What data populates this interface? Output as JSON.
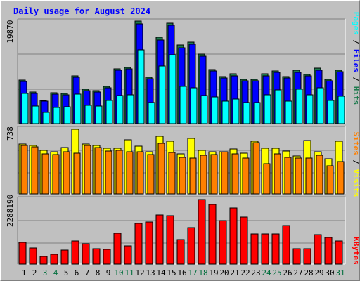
{
  "title": "Daily usage for August 2024",
  "colors": {
    "hits": "#1e7b4e",
    "files": "#0000ff",
    "pages": "#00ffff",
    "visits": "#ffff00",
    "sites": "#ff8000",
    "kbytes": "#ff0000",
    "title": "#0000ff",
    "weekend": "#006e3c",
    "weekday": "#000000"
  },
  "chart_data": [
    {
      "type": "bar",
      "categories": [
        "1",
        "2",
        "3",
        "4",
        "5",
        "6",
        "7",
        "8",
        "9",
        "10",
        "11",
        "12",
        "13",
        "14",
        "15",
        "16",
        "17",
        "18",
        "19",
        "20",
        "21",
        "22",
        "23",
        "24",
        "25",
        "26",
        "27",
        "28",
        "29",
        "30",
        "31"
      ],
      "weekend_days": [
        "3",
        "4",
        "10",
        "11",
        "17",
        "18",
        "24",
        "25",
        "31"
      ],
      "ymax_label": "19870",
      "ylim": [
        0,
        19870
      ],
      "axis_labels": {
        "pages": "Pages",
        "files": "Files",
        "hits": "Hits",
        "sep": " / "
      },
      "series": [
        {
          "name": "Hits",
          "values": [
            8400,
            6100,
            4500,
            6000,
            5900,
            9300,
            6700,
            6400,
            7200,
            10600,
            10900,
            19870,
            9000,
            16700,
            19400,
            15200,
            15800,
            13500,
            10500,
            9100,
            9600,
            8600,
            8600,
            9600,
            10200,
            9100,
            10300,
            9500,
            10700,
            8600,
            10400
          ]
        },
        {
          "name": "Files",
          "values": [
            8100,
            5900,
            4300,
            5700,
            5600,
            9000,
            6400,
            6100,
            6900,
            10300,
            10600,
            19300,
            8700,
            16200,
            19000,
            14700,
            15400,
            13100,
            10200,
            8800,
            9300,
            8300,
            8300,
            9300,
            9900,
            8800,
            10000,
            9200,
            10400,
            8300,
            10100
          ]
        },
        {
          "name": "Pages",
          "values": [
            5800,
            3400,
            2200,
            3100,
            3200,
            5700,
            3500,
            3400,
            4500,
            5500,
            5600,
            14300,
            4100,
            11200,
            13300,
            7200,
            6900,
            5400,
            5200,
            4300,
            4700,
            4100,
            4100,
            5600,
            6600,
            4400,
            6700,
            5600,
            7000,
            4500,
            5300
          ]
        }
      ]
    },
    {
      "type": "bar",
      "categories": [
        "1",
        "2",
        "3",
        "4",
        "5",
        "6",
        "7",
        "8",
        "9",
        "10",
        "11",
        "12",
        "13",
        "14",
        "15",
        "16",
        "17",
        "18",
        "19",
        "20",
        "21",
        "22",
        "23",
        "24",
        "25",
        "26",
        "27",
        "28",
        "29",
        "30",
        "31"
      ],
      "ymax_label": "738",
      "ylim": [
        0,
        738
      ],
      "axis_labels": {
        "sites": "Sites",
        "visits": "Visits",
        "sep": " / "
      },
      "series": [
        {
          "name": "Visits",
          "values": [
            567,
            550,
            500,
            480,
            530,
            738,
            570,
            554,
            518,
            520,
            614,
            546,
            485,
            658,
            601,
            458,
            630,
            500,
            484,
            482,
            514,
            464,
            600,
            525,
            518,
            489,
            433,
            607,
            484,
            405,
            604
          ]
        },
        {
          "name": "Sites",
          "values": [
            555,
            536,
            460,
            450,
            484,
            468,
            552,
            526,
            486,
            500,
            478,
            478,
            450,
            578,
            474,
            419,
            410,
            444,
            447,
            484,
            455,
            411,
            589,
            341,
            458,
            416,
            410,
            410,
            443,
            322,
            372
          ]
        }
      ]
    },
    {
      "type": "bar",
      "categories": [
        "1",
        "2",
        "3",
        "4",
        "5",
        "6",
        "7",
        "8",
        "9",
        "10",
        "11",
        "12",
        "13",
        "14",
        "15",
        "16",
        "17",
        "18",
        "19",
        "20",
        "21",
        "22",
        "23",
        "24",
        "25",
        "26",
        "27",
        "28",
        "29",
        "30",
        "31"
      ],
      "ymax_label": "2288190",
      "ylim": [
        0,
        2288190
      ],
      "axis_labels": {
        "kbytes": "KBytes"
      },
      "series": [
        {
          "name": "KBytes",
          "values": [
            782000,
            572000,
            285000,
            342000,
            485000,
            825000,
            711000,
            555000,
            512000,
            1100000,
            640000,
            1440000,
            1480000,
            1730000,
            1710000,
            880000,
            1300000,
            2280000,
            2110000,
            1540000,
            2000000,
            1670000,
            1080000,
            1080000,
            1080000,
            1360000,
            555000,
            555000,
            1040000,
            938000,
            825000
          ]
        }
      ]
    }
  ]
}
